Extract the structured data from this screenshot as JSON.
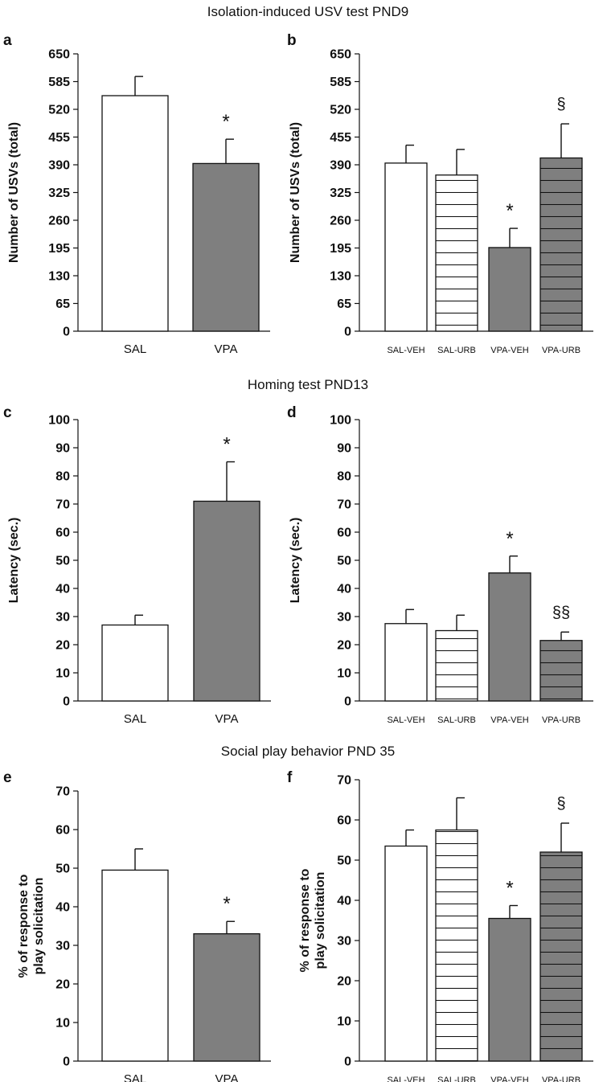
{
  "figure": {
    "section_titles": [
      "Isolation-induced USV test PND9",
      "Homing test PND13",
      "Social play behavior PND 35"
    ]
  },
  "colors": {
    "saline": "#ffffff",
    "vpa": "#7f7f7f",
    "hatch": "#111111",
    "axis": "#111111"
  },
  "chart_data": [
    {
      "panel": "a",
      "type": "bar",
      "ylabel": "Number of USVs (total)",
      "ylim": [
        0,
        650
      ],
      "yticks": [
        "0",
        "65",
        "130",
        "195",
        "260",
        "325",
        "390",
        "455",
        "520",
        "585",
        "650"
      ],
      "categories": [
        "SAL",
        "VPA"
      ],
      "values": [
        552,
        393
      ],
      "errors": [
        45,
        57
      ],
      "fills": [
        "white",
        "gray"
      ],
      "annotations": [
        "",
        "*"
      ]
    },
    {
      "panel": "b",
      "type": "bar",
      "ylabel": "Number of USVs (total)",
      "ylim": [
        0,
        650
      ],
      "yticks": [
        "0",
        "65",
        "130",
        "195",
        "260",
        "325",
        "390",
        "455",
        "520",
        "585",
        "650"
      ],
      "categories": [
        "SAL-VEH",
        "SAL-URB",
        "VPA-VEH",
        "VPA-URB"
      ],
      "values": [
        394,
        366,
        196,
        406
      ],
      "errors": [
        42,
        60,
        45,
        80
      ],
      "fills": [
        "white",
        "white-hatched",
        "gray",
        "gray-hatched"
      ],
      "annotations": [
        "",
        "",
        "*",
        "§"
      ]
    },
    {
      "panel": "c",
      "type": "bar",
      "ylabel": "Latency (sec.)",
      "ylim": [
        0,
        100
      ],
      "yticks": [
        "0",
        "10",
        "20",
        "30",
        "40",
        "50",
        "60",
        "70",
        "80",
        "90",
        "100"
      ],
      "categories": [
        "SAL",
        "VPA"
      ],
      "values": [
        27,
        71
      ],
      "errors": [
        3.5,
        14
      ],
      "fills": [
        "white",
        "gray"
      ],
      "annotations": [
        "",
        "*"
      ]
    },
    {
      "panel": "d",
      "type": "bar",
      "ylabel": "Latency (sec.)",
      "ylim": [
        0,
        100
      ],
      "yticks": [
        "0",
        "10",
        "20",
        "30",
        "40",
        "50",
        "60",
        "70",
        "80",
        "90",
        "100"
      ],
      "categories": [
        "SAL-VEH",
        "SAL-URB",
        "VPA-VEH",
        "VPA-URB"
      ],
      "values": [
        27.5,
        25,
        45.5,
        21.5
      ],
      "errors": [
        5,
        5.5,
        6,
        3
      ],
      "fills": [
        "white",
        "white-hatched",
        "gray",
        "gray-hatched"
      ],
      "annotations": [
        "",
        "",
        "*",
        "§§"
      ]
    },
    {
      "panel": "e",
      "type": "bar",
      "ylabel": [
        "% of response to",
        "play solicitation"
      ],
      "ylim": [
        0,
        70
      ],
      "yticks": [
        "0",
        "10",
        "20",
        "30",
        "40",
        "50",
        "60",
        "70"
      ],
      "categories": [
        "SAL",
        "VPA"
      ],
      "values": [
        49.5,
        33
      ],
      "errors": [
        5.5,
        3.2
      ],
      "fills": [
        "white",
        "gray"
      ],
      "annotations": [
        "",
        "*"
      ]
    },
    {
      "panel": "f",
      "type": "bar",
      "ylabel": [
        "% of response to",
        "play solicitation"
      ],
      "ylim": [
        0,
        70
      ],
      "yticks": [
        "0",
        "10",
        "20",
        "30",
        "40",
        "50",
        "60",
        "70"
      ],
      "categories": [
        "SAL-VEH",
        "SAL-URB",
        "VPA-VEH",
        "VPA-URB"
      ],
      "values": [
        53.5,
        57.5,
        35.5,
        52
      ],
      "errors": [
        4,
        8,
        3.2,
        7.2
      ],
      "fills": [
        "white",
        "white-hatched",
        "gray",
        "gray-hatched"
      ],
      "annotations": [
        "",
        "",
        "*",
        "§"
      ]
    }
  ]
}
